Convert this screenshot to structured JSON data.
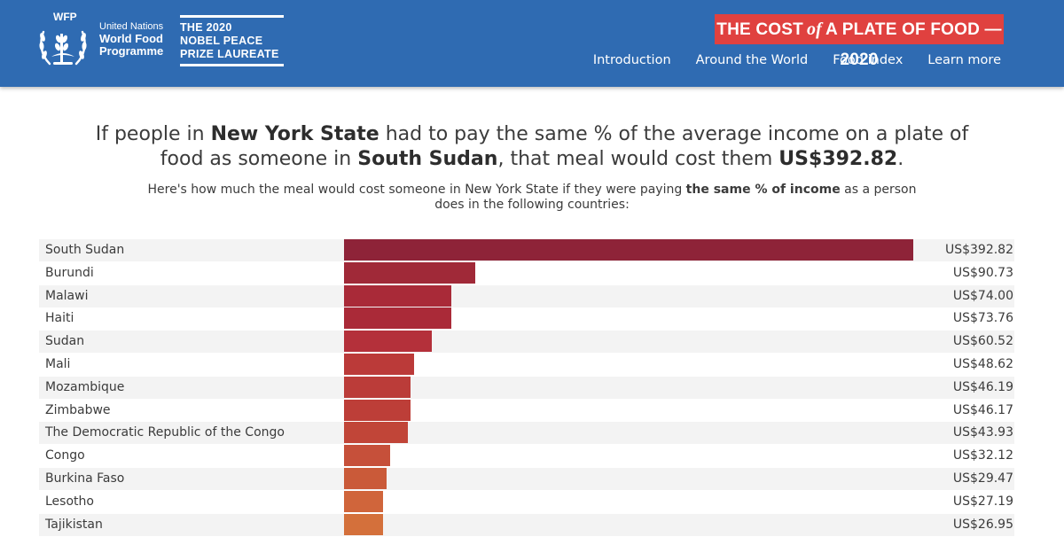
{
  "header": {
    "org_abbr": "WFP",
    "org_line1": "United Nations",
    "org_line2": "World Food",
    "org_line3": "Programme",
    "nobel_line1": "THE 2020",
    "nobel_line2": "NOBEL PEACE",
    "nobel_line3": "PRIZE LAUREATE",
    "brand_part1": "THE COST",
    "brand_of": "of",
    "brand_part2": "A PLATE OF FOOD — 2020",
    "nav": [
      "Introduction",
      "Around the World",
      "Food index",
      "Learn more"
    ]
  },
  "headline": {
    "p1": "If people in ",
    "place": "New York State",
    "p2": " had to pay the same % of the average income on a plate of food as someone in ",
    "country": "South Sudan",
    "p3": ", that meal would cost them ",
    "amount": "US$392.82",
    "p4": "."
  },
  "subtitle": {
    "p1": "Here's how much the meal would cost someone in New York State if they were paying ",
    "bold": "the same % of income",
    "p2": " as a person does in the following countries:"
  },
  "colors": {
    "header_bg": "#2f6bb2",
    "badge_bg": "#e0413f",
    "bar_palette": [
      "#8e2338",
      "#a02938",
      "#a92a38",
      "#aa2a38",
      "#b4303a",
      "#bb3a39",
      "#bb3c39",
      "#bd3e38",
      "#c14538",
      "#c6503a",
      "#ca5a39",
      "#d0653b",
      "#d4703b"
    ]
  },
  "chart_data": {
    "type": "bar",
    "orientation": "horizontal",
    "categories": [
      "South Sudan",
      "Burundi",
      "Malawi",
      "Haiti",
      "Sudan",
      "Mali",
      "Mozambique",
      "Zimbabwe",
      "The Democratic Republic of the Congo",
      "Congo",
      "Burkina Faso",
      "Lesotho",
      "Tajikistan"
    ],
    "values": [
      392.82,
      90.73,
      74.0,
      73.76,
      60.52,
      48.62,
      46.19,
      46.17,
      43.93,
      32.12,
      29.47,
      27.19,
      26.95
    ],
    "value_labels": [
      "US$392.82",
      "US$90.73",
      "US$74.00",
      "US$73.76",
      "US$60.52",
      "US$48.62",
      "US$46.19",
      "US$46.17",
      "US$43.93",
      "US$32.12",
      "US$29.47",
      "US$27.19",
      "US$26.95"
    ],
    "xlim": [
      0,
      392.82
    ],
    "grid": false
  }
}
